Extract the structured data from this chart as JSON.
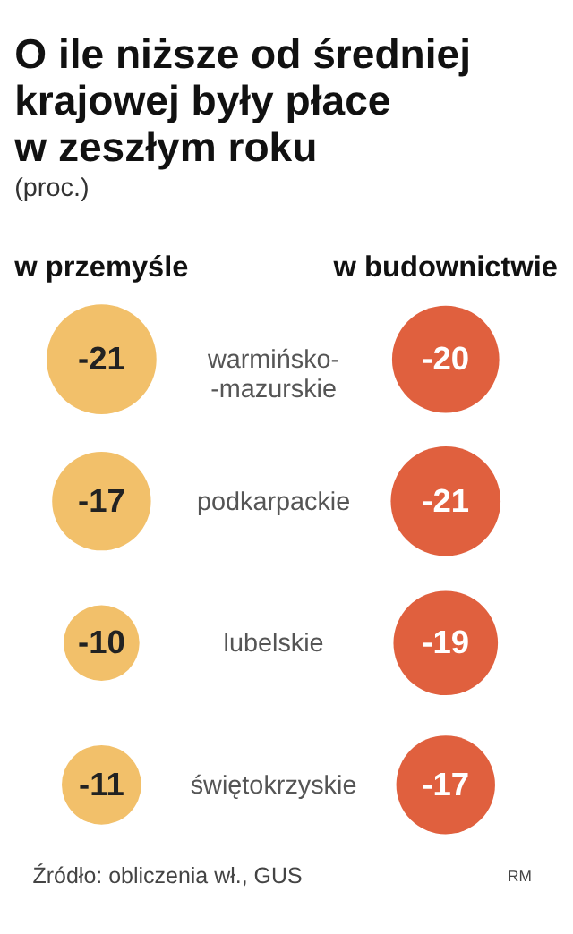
{
  "chart_data": {
    "type": "other",
    "title": "O ile niższe od średniej\nkrajowej były płace\nw zeszłym roku",
    "subtitle": "(proc.)",
    "categories": [
      "warmińsko-\n-mazurskie",
      "podkarpackie",
      "lubelskie",
      "świętokrzyskie"
    ],
    "series": [
      {
        "name": "w przemyśle",
        "color": "#f2c06a",
        "values": [
          -21,
          -17,
          -10,
          -11
        ]
      },
      {
        "name": "w budownictwie",
        "color": "#e0603e",
        "values": [
          -20,
          -21,
          -19,
          -17
        ]
      }
    ],
    "data_labels": true,
    "annotations": [
      "Źródło: obliczenia wł., GUS",
      "RM"
    ]
  }
}
